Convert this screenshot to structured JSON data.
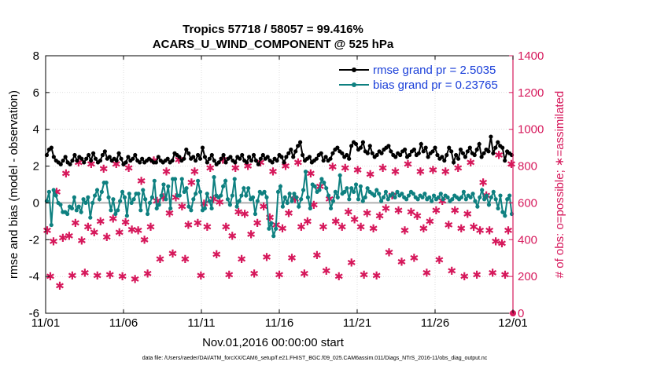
{
  "colors": {
    "rmse": "#000000",
    "bias": "#0e8080",
    "obs": "#d6185b",
    "legend_text": "#1a3fd9",
    "zero_line": "#b0b0b0"
  },
  "footnote": "data file: /Users/raeder/DAI/ATM_forcXX/CAM6_setup/f.e21.FHIST_BGC.f09_025.CAM6assim.011/Diags_NTrS_2016-11/obs_diag_output.nc",
  "chart_data": {
    "type": "line",
    "title_line1": "Tropics 57718 / 58057 = 99.416%",
    "title_line2": "ACARS_U_WIND_COMPONENT @ 525 hPa",
    "xlabel": "Nov.01,2016 00:00:00 start",
    "ylabel": "rmse and bias (model - observation)",
    "ylabel_right": "# of obs: o=possible; ∗=assimilated",
    "xlim": [
      0,
      30
    ],
    "ylim": [
      -6,
      8
    ],
    "ylim_right": [
      0,
      1400
    ],
    "x_ticks": [
      0,
      5,
      10,
      15,
      20,
      25,
      30
    ],
    "x_tick_labels": [
      "11/01",
      "11/06",
      "11/11",
      "11/16",
      "11/21",
      "11/26",
      "12/01"
    ],
    "y_ticks": [
      -6,
      -4,
      -2,
      0,
      2,
      4,
      6,
      8
    ],
    "y_tick_labels": [
      "-6",
      "-4",
      "-2",
      "0",
      "2",
      "4",
      "6",
      "8"
    ],
    "y_ticks_right": [
      0,
      200,
      400,
      600,
      800,
      1000,
      1200,
      1400
    ],
    "y_tick_labels_right": [
      "0",
      "200",
      "400",
      "600",
      "800",
      "1000",
      "1200",
      "1400"
    ],
    "legend": [
      "rmse grand pr = 2.5035",
      "bias grand pr = 0.23765"
    ],
    "series": [
      {
        "name": "rmse",
        "values": [
          2.6,
          2.9,
          3.0,
          2.5,
          2.3,
          2.2,
          2.1,
          2.3,
          2.5,
          2.2,
          2.1,
          2.3,
          2.6,
          2.3,
          2.5,
          2.4,
          2.2,
          2.4,
          2.6,
          2.3,
          2.7,
          2.4,
          2.2,
          2.3,
          2.6,
          2.8,
          2.4,
          2.5,
          2.3,
          2.4,
          2.3,
          2.7,
          2.4,
          2.1,
          2.2,
          2.5,
          2.3,
          2.4,
          2.6,
          2.3,
          2.2,
          2.4,
          2.2,
          2.3,
          2.4,
          2.3,
          2.2,
          2.2,
          2.5,
          2.3,
          2.2,
          2.3,
          2.4,
          2.2,
          2.3,
          2.7,
          2.6,
          2.5,
          2.3,
          2.4,
          2.9,
          2.7,
          2.4,
          2.5,
          2.3,
          2.6,
          2.4,
          3.0,
          2.5,
          2.2,
          2.4,
          2.6,
          2.3,
          2.1,
          2.2,
          2.4,
          2.6,
          2.2,
          2.4,
          2.5,
          2.3,
          2.2,
          2.5,
          2.4,
          2.6,
          2.3,
          2.2,
          2.5,
          2.3,
          2.6,
          2.3,
          2.1,
          2.4,
          2.6,
          2.4,
          2.5,
          2.3,
          2.2,
          2.4,
          2.3,
          2.6,
          2.5,
          2.2,
          2.5,
          2.7,
          2.9,
          2.5,
          2.8,
          3.1,
          3.3,
          2.6,
          2.3,
          2.4,
          2.5,
          2.2,
          2.3,
          2.4,
          2.6,
          2.7,
          2.3,
          2.5,
          2.3,
          2.4,
          2.7,
          2.9,
          3.0,
          2.8,
          2.7,
          2.5,
          2.6,
          2.4,
          3.1,
          3.3,
          3.2,
          2.9,
          3.0,
          3.3,
          2.8,
          2.7,
          3.1,
          2.7,
          2.5,
          2.6,
          2.8,
          2.7,
          2.9,
          3.0,
          3.1,
          2.8,
          2.6,
          2.5,
          2.7,
          2.6,
          2.8,
          2.9,
          2.5,
          2.6,
          2.8,
          2.9,
          2.6,
          2.7,
          3.2,
          2.8,
          3.0,
          2.5,
          2.7,
          2.8,
          3.0,
          2.6,
          2.4,
          2.5,
          2.3,
          2.6,
          3.0,
          2.8,
          2.2,
          2.6,
          2.4,
          2.9,
          2.7,
          2.5,
          2.8,
          3.0,
          2.7,
          2.6,
          2.9,
          3.2,
          2.5,
          2.7,
          2.9,
          2.8,
          3.6,
          2.7,
          3.0,
          3.3,
          3.1,
          3.0,
          2.3,
          2.8,
          2.7,
          2.6
        ]
      },
      {
        "name": "bias",
        "values": [
          0.1,
          0.6,
          -1.2,
          0.7,
          0.4,
          0.0,
          -0.1,
          -0.5,
          -0.5,
          -0.6,
          -0.2,
          -0.3,
          0.3,
          -0.4,
          -0.2,
          -0.5,
          0.2,
          0.0,
          0.3,
          -0.8,
          0.0,
          0.4,
          0.7,
          0.2,
          0.6,
          1.1,
          1.1,
          0.3,
          -0.4,
          0.2,
          -0.6,
          -0.4,
          0.1,
          0.6,
          0.3,
          -0.7,
          0.5,
          0.0,
          0.2,
          0.5,
          0.5,
          -0.4,
          0.7,
          0.2,
          -0.6,
          0.0,
          0.3,
          1.2,
          -0.3,
          -0.1,
          0.4,
          1.0,
          0.2,
          0.9,
          -0.3,
          1.3,
          1.3,
          0.4,
          0.4,
          1.3,
          0.6,
          0.8,
          -0.2,
          -0.4,
          0.2,
          0.5,
          1.2,
          0.6,
          -0.4,
          -0.3,
          0.5,
          0.1,
          -0.3,
          1.4,
          0.4,
          0.3,
          0.4,
          0.9,
          1.2,
          0.2,
          -0.1,
          0.4,
          1.3,
          -0.2,
          0.1,
          0.4,
          0.8,
          0.4,
          0.8,
          0.2,
          0.3,
          -0.6,
          0.1,
          0.6,
          0.5,
          0.6,
          0.3,
          -1.4,
          -1.1,
          -1.8,
          -1.4,
          0.6,
          0.9,
          -0.2,
          0.3,
          0.0,
          0.5,
          0.1,
          0.5,
          0.3,
          -0.2,
          0.2,
          0.7,
          1.7,
          0.3,
          -0.3,
          1.0,
          0.9,
          0.6,
          0.7,
          1.3,
          1.1,
          0.8,
          0.4,
          -0.3,
          0.1,
          0.6,
          0.3,
          1.5,
          0.5,
          0.6,
          0.8,
          0.2,
          0.8,
          0.6,
          1.0,
          0.2,
          0.9,
          0.1,
          0.3,
          0.8,
          0.6,
          0.5,
          0.4,
          0.7,
          0.5,
          0.1,
          0.3,
          0.6,
          0.2,
          0.4,
          0.5,
          0.3,
          0.6,
          0.4,
          0.5,
          0.3,
          0.2,
          0.4,
          0.6,
          0.5,
          0.3,
          0.2,
          0.4,
          0.3,
          0.5,
          0.2,
          0.3,
          0.1,
          0.4,
          0.2,
          0.3,
          0.5,
          0.2,
          0.4,
          0.3,
          0.1,
          0.2,
          0.4,
          0.3,
          0.2,
          0.3,
          0.6,
          0.2,
          0.4,
          0.3,
          0.5,
          0.1,
          -0.2,
          0.3,
          0.7,
          0.2,
          0.4,
          -0.1,
          0.3,
          0.6,
          0.2,
          -0.3,
          0.4,
          -0.5,
          -0.7,
          0.2,
          0.4,
          -0.6
        ]
      },
      {
        "name": "obs_possible",
        "values": [
          450,
          200,
          390,
          660,
          150,
          410,
          760,
          420,
          205,
          490,
          820,
          395,
          220,
          470,
          810,
          440,
          205,
          500,
          785,
          415,
          210,
          515,
          810,
          440,
          200,
          495,
          790,
          455,
          185,
          450,
          720,
          400,
          215,
          470,
          830,
          610,
          295,
          630,
          770,
          545,
          325,
          630,
          835,
          580,
          295,
          480,
          710,
          770,
          490,
          205,
          595,
          470,
          790,
          620,
          320,
          605,
          835,
          470,
          210,
          420,
          790,
          550,
          295,
          540,
          800,
          430,
          215,
          490,
          820,
          580,
          305,
          520,
          770,
          480,
          210,
          460,
          800,
          545,
          300,
          620,
          820,
          470,
          215,
          500,
          760,
          590,
          315,
          690,
          470,
          230,
          620,
          795,
          500,
          200,
          470,
          790,
          550,
          275,
          510,
          780,
          470,
          210,
          545,
          755,
          460,
          205,
          530,
          790,
          570,
          330,
          640,
          770,
          560,
          280,
          450,
          810,
          550,
          300,
          530,
          770,
          460,
          220,
          500,
          780,
          560,
          290,
          610,
          770,
          480,
          230,
          560,
          790,
          460,
          200,
          540,
          820,
          470,
          210,
          450,
          710,
          640,
          450,
          220,
          390,
          860,
          380,
          210,
          450,
          810
        ]
      }
    ]
  }
}
